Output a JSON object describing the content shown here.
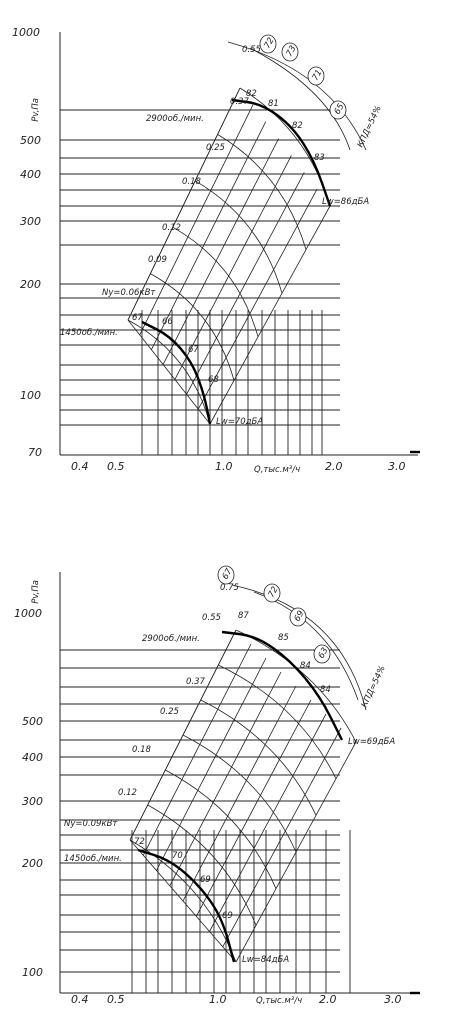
{
  "chart_data": [
    {
      "type": "line",
      "title": "",
      "ylabel": "Pv,Па",
      "xlabel": "Q,тыс.м³/ч",
      "y_scale": "log",
      "x_scale": "log",
      "ylim": [
        70,
        1000
      ],
      "y_ticks": [
        "1000",
        "500",
        "400",
        "300",
        "200",
        "100",
        "70"
      ],
      "x_ticks": [
        "0.4",
        "0.5",
        "1.0",
        "2.0",
        "3.0"
      ],
      "power_labels": [
        "0.55",
        "0.37",
        "0.25",
        "0.18",
        "0.12",
        "0.09",
        "Ny=0.06кВт"
      ],
      "speed_labels": [
        "2900об./мин.",
        "1450об./мин."
      ],
      "efficiency_circles": [
        "72",
        "73",
        "71",
        "65"
      ],
      "efficiency_axis_label": "КПД=54%",
      "noise_labels": [
        "82",
        "81",
        "82",
        "83",
        "67",
        "66",
        "67",
        "68"
      ],
      "lw_labels": [
        "Lw=86дБА",
        "Lw=70дБА"
      ],
      "series": [
        {
          "name": "2900об./мин.",
          "x": [
            1.02,
            1.3,
            1.6,
            1.9,
            2.25
          ],
          "y": [
            600,
            565,
            505,
            420,
            320
          ]
        },
        {
          "name": "1450об./мин.",
          "x": [
            0.5,
            0.65,
            0.8,
            0.92,
            1.05
          ],
          "y": [
            150,
            141,
            126,
            105,
            81
          ]
        }
      ]
    },
    {
      "type": "line",
      "title": "",
      "ylabel": "Pv,Па",
      "xlabel": "Q,тыс.м³/ч",
      "y_scale": "log",
      "x_scale": "log",
      "ylim": [
        90,
        1100
      ],
      "y_ticks": [
        "1000",
        "500",
        "400",
        "300",
        "200",
        "100"
      ],
      "x_ticks": [
        "0.4",
        "0.5",
        "1.0",
        "2.0",
        "3.0"
      ],
      "power_labels": [
        "0.75",
        "0.55",
        "0.37",
        "0.25",
        "0.18",
        "0.12",
        "Ny=0.09кВт"
      ],
      "speed_labels": [
        "2900об./мин.",
        "1450об./мин."
      ],
      "efficiency_circles": [
        "67",
        "72",
        "69",
        "63"
      ],
      "efficiency_axis_label": "КПД=54%",
      "noise_labels": [
        "87",
        "85",
        "84",
        "84",
        "72",
        "70",
        "69",
        "69"
      ],
      "lw_labels": [
        "Lw=84дБА",
        "Lw=69дБА"
      ],
      "series": [
        {
          "name": "2900об./мин.",
          "x": [
            1.05,
            1.3,
            1.6,
            1.9,
            2.3
          ],
          "y": [
            900,
            870,
            780,
            640,
            460
          ]
        },
        {
          "name": "1450об./мин.",
          "x": [
            0.55,
            0.7,
            0.85,
            1.0,
            1.15
          ],
          "y": [
            225,
            210,
            185,
            150,
            110
          ]
        }
      ]
    }
  ]
}
